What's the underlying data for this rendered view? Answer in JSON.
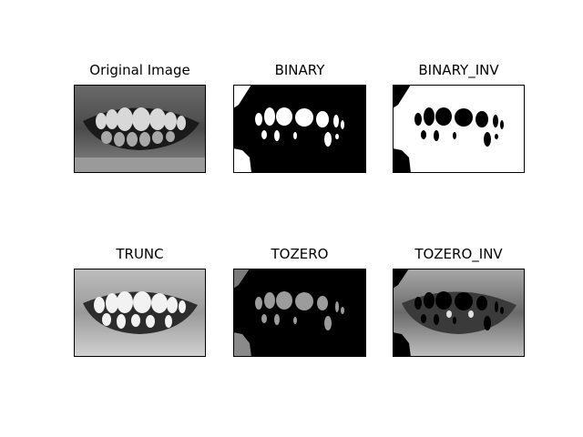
{
  "figure": {
    "panels": [
      {
        "id": "original",
        "title": "Original Image"
      },
      {
        "id": "binary",
        "title": "BINARY"
      },
      {
        "id": "binary_inv",
        "title": "BINARY_INV"
      },
      {
        "id": "trunc",
        "title": "TRUNC"
      },
      {
        "id": "tozero",
        "title": "TOZERO"
      },
      {
        "id": "tozero_inv",
        "title": "TOZERO_INV"
      }
    ]
  }
}
